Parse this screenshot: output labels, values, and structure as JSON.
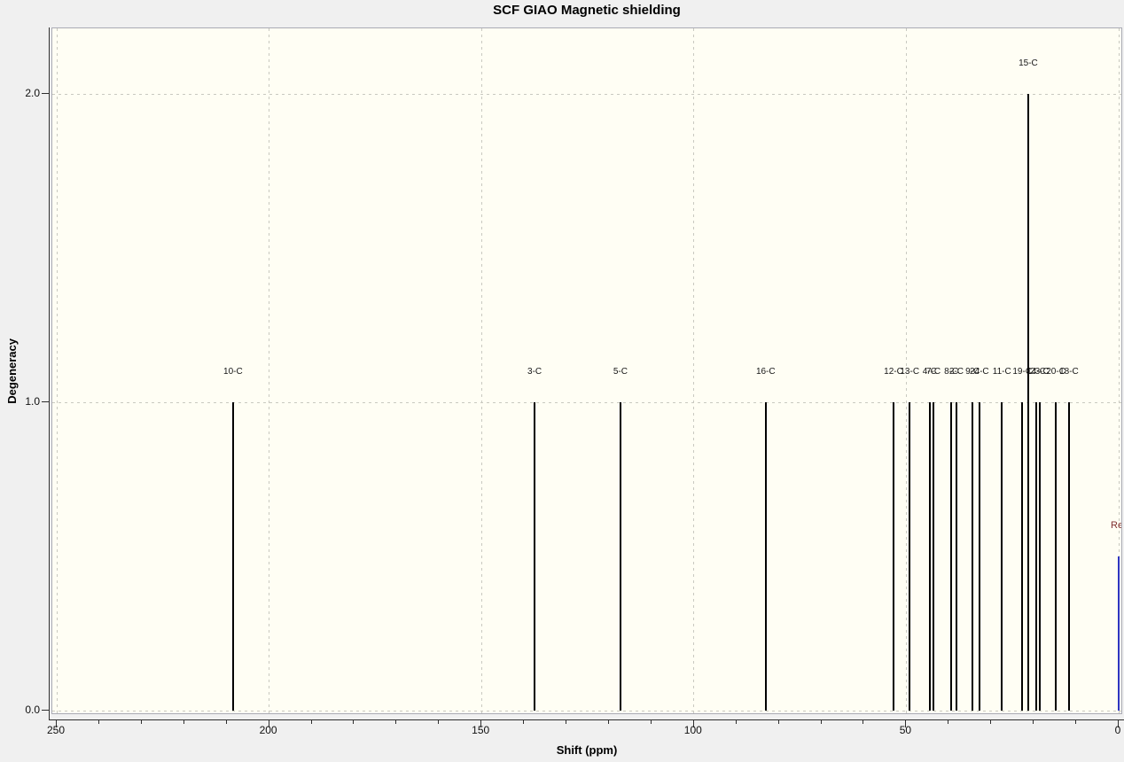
{
  "chart_data": {
    "type": "bar",
    "subtype": "stick-spectrum",
    "title": "SCF GIAO Magnetic shielding",
    "xlabel": "Shift (ppm)",
    "ylabel": "Degeneracy",
    "xlim": [
      250,
      0
    ],
    "x_axis_reversed": true,
    "ylim": [
      0,
      2.2
    ],
    "x_ticks_major": [
      250,
      200,
      150,
      100,
      50,
      0
    ],
    "x_tick_labels": [
      "250",
      "200",
      "150",
      "100",
      "50",
      "0"
    ],
    "x_minor_tick_step": 10,
    "y_ticks": [
      0,
      1,
      2
    ],
    "y_tick_labels": [
      "0.0",
      "1.0",
      "2.0"
    ],
    "grid": "dashed",
    "legend_position": "none",
    "peaks": [
      {
        "label": "10-C",
        "shift": 208.5,
        "degeneracy": 1
      },
      {
        "label": "3-C",
        "shift": 137.5,
        "degeneracy": 1
      },
      {
        "label": "5-C",
        "shift": 117.3,
        "degeneracy": 1
      },
      {
        "label": "16-C",
        "shift": 83.1,
        "degeneracy": 1
      },
      {
        "label": "12-C",
        "shift": 53.0,
        "degeneracy": 1
      },
      {
        "label": "13-C",
        "shift": 49.2,
        "degeneracy": 1
      },
      {
        "label": "4-C",
        "shift": 44.5,
        "degeneracy": 1
      },
      {
        "label": "7-C",
        "shift": 43.6,
        "degeneracy": 1
      },
      {
        "label": "8-C",
        "shift": 39.4,
        "degeneracy": 1
      },
      {
        "label": "2-C",
        "shift": 38.2,
        "degeneracy": 1
      },
      {
        "label": "9-C",
        "shift": 34.4,
        "degeneracy": 1
      },
      {
        "label": "24-C",
        "shift": 32.8,
        "degeneracy": 1
      },
      {
        "label": "11-C",
        "shift": 27.5,
        "degeneracy": 1
      },
      {
        "label": "19-C",
        "shift": 22.7,
        "degeneracy": 1
      },
      {
        "label": "15-C",
        "shift": 21.3,
        "degeneracy": 2
      },
      {
        "label": "14-C",
        "shift": 19.4,
        "degeneracy": 1
      },
      {
        "label": "23-C",
        "shift": 18.6,
        "degeneracy": 1
      },
      {
        "label": "20-C",
        "shift": 14.8,
        "degeneracy": 1
      },
      {
        "label": "18-C",
        "shift": 11.7,
        "degeneracy": 1
      }
    ],
    "reference": {
      "label": "Re",
      "shift": 0.0,
      "height": 0.5
    }
  },
  "colors": {
    "window_background": "#f0f0f0",
    "plot_background": "#fffef4",
    "grid": "#c9c9c0",
    "peak_line": "#000000",
    "reference_line": "#2f35c0",
    "reference_label": "#803030",
    "axis": "#2e2e2e",
    "border": "#a9aab4"
  }
}
